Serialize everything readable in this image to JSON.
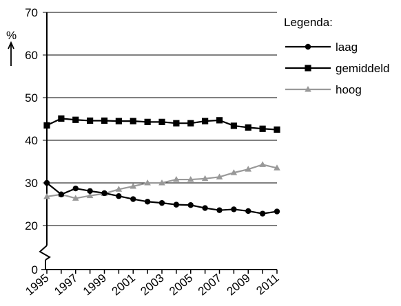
{
  "chart_data": {
    "type": "line",
    "ylabel": "%",
    "ylim": [
      0,
      70
    ],
    "y_ticks": [
      "0",
      "20",
      "30",
      "40",
      "50",
      "60",
      "70"
    ],
    "y_axis_break": "between 0 and 20",
    "x": [
      "1995",
      "1996",
      "1997",
      "1998",
      "1999",
      "2000",
      "2001",
      "2002",
      "2003",
      "2004",
      "2005",
      "2006",
      "2007",
      "2008",
      "2009",
      "2010",
      "2011"
    ],
    "x_tick_labels": [
      "1995",
      "1997",
      "1999",
      "2001",
      "2003",
      "2005",
      "2007",
      "2009",
      "2011"
    ],
    "grid": "horizontal",
    "legend": {
      "title": "Legenda:",
      "placement": "top-right"
    },
    "series": [
      {
        "name": "laag",
        "marker": "circle",
        "color": "#000000",
        "values": [
          30.0,
          27.3,
          28.7,
          28.1,
          27.6,
          26.9,
          26.2,
          25.6,
          25.3,
          24.9,
          24.8,
          24.1,
          23.6,
          23.8,
          23.4,
          22.8,
          23.3
        ]
      },
      {
        "name": "gemiddeld",
        "marker": "square",
        "color": "#000000",
        "values": [
          43.5,
          45.1,
          44.8,
          44.6,
          44.6,
          44.5,
          44.5,
          44.3,
          44.3,
          44.0,
          44.0,
          44.5,
          44.7,
          43.4,
          43.0,
          42.7,
          42.5
        ]
      },
      {
        "name": "hoog",
        "marker": "triangle",
        "color": "#999999",
        "values": [
          26.8,
          27.3,
          26.4,
          27.0,
          27.5,
          28.5,
          29.2,
          30.0,
          30.0,
          30.8,
          30.8,
          31.0,
          31.4,
          32.4,
          33.2,
          34.3,
          33.5
        ]
      }
    ]
  }
}
